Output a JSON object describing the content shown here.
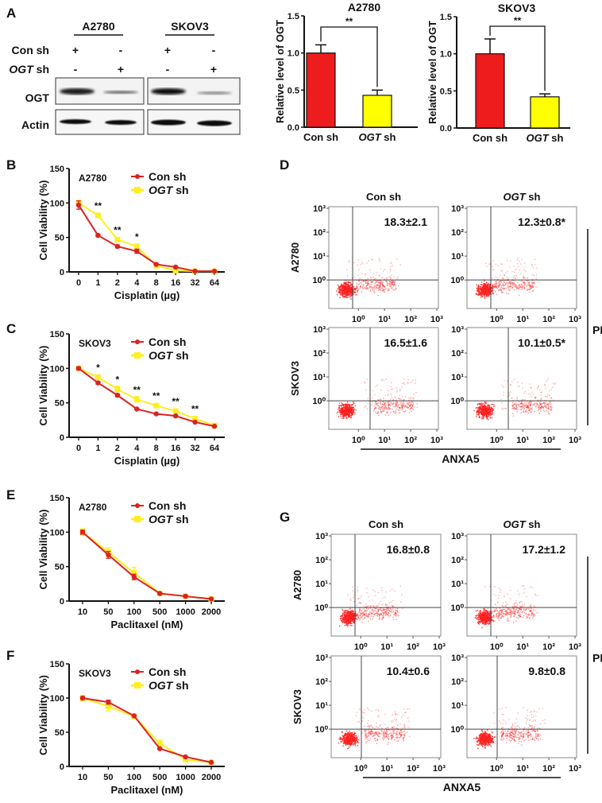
{
  "panels": {
    "A": "A",
    "B": "B",
    "C": "C",
    "D": "D",
    "E": "E",
    "F": "F",
    "G": "G"
  },
  "western_blot": {
    "cell_lines": [
      "A2780",
      "SKOV3"
    ],
    "row_labels": {
      "con": "Con sh",
      "ogt_italic": "OGT",
      "ogt_rest": " sh"
    },
    "con_signs": [
      "+",
      "-",
      "+",
      "-"
    ],
    "ogt_signs": [
      "-",
      "+",
      "-",
      "+"
    ],
    "proteins": [
      "OGT",
      "Actin"
    ]
  },
  "colors": {
    "con": "#ee1c1c",
    "ogt": "#ffff00",
    "con_line": "#dd2222",
    "ogt_line": "#ffee22",
    "flow_dot": "#ff2020"
  },
  "legend": {
    "con": "Con sh",
    "ogt_italic": "OGT",
    "ogt_rest": " sh"
  },
  "chart_data": [
    {
      "id": "A-bar-A2780",
      "type": "bar",
      "title": "A2780",
      "ylabel": "Relative level of OGT",
      "categories": [
        "Con sh",
        "OGT sh"
      ],
      "values": [
        1.0,
        0.43
      ],
      "errors": [
        0.11,
        0.07
      ],
      "ylim": [
        0,
        1.5
      ],
      "yticks": [
        "0.0",
        "0.5",
        "1.0",
        "1.5"
      ],
      "significance": "**"
    },
    {
      "id": "A-bar-SKOV3",
      "type": "bar",
      "title": "SKOV3",
      "ylabel": "Relative level of OGT",
      "categories": [
        "Con sh",
        "OGT sh"
      ],
      "values": [
        1.0,
        0.42
      ],
      "errors": [
        0.2,
        0.04
      ],
      "ylim": [
        0,
        1.5
      ],
      "yticks": [
        "0.0",
        "0.5",
        "1.0",
        "1.5"
      ],
      "significance": "**"
    },
    {
      "id": "B-line",
      "type": "line",
      "title": "A2780",
      "xlabel": "Cisplatin (µg)",
      "ylabel": "Cell Viability (%)",
      "categories": [
        "0",
        "1",
        "2",
        "4",
        "8",
        "16",
        "32",
        "64"
      ],
      "series": [
        {
          "name": "Con sh",
          "values": [
            97,
            53,
            37,
            30,
            11,
            7,
            1,
            1
          ],
          "errors": [
            6,
            2,
            2,
            3,
            1,
            1,
            0,
            0
          ]
        },
        {
          "name": "OGT sh",
          "values": [
            100,
            82,
            47,
            37,
            9,
            2,
            1,
            1
          ],
          "errors": [
            4,
            2,
            2,
            2,
            2,
            1,
            0,
            0
          ]
        }
      ],
      "significance": [
        "",
        "**",
        "**",
        "*",
        "",
        "",
        "",
        ""
      ],
      "ylim": [
        0,
        150
      ],
      "yticks": [
        "0",
        "50",
        "100",
        "150"
      ],
      "legend": "top-right"
    },
    {
      "id": "C-line",
      "type": "line",
      "title": "SKOV3",
      "xlabel": "Cisplatin (µg)",
      "ylabel": "Cell Viability (%)",
      "categories": [
        "0",
        "1",
        "2",
        "4",
        "8",
        "16",
        "32",
        "64"
      ],
      "series": [
        {
          "name": "Con sh",
          "values": [
            100,
            79,
            61,
            41,
            34,
            31,
            22,
            16
          ],
          "errors": [
            2,
            2,
            2,
            1,
            1,
            1,
            1,
            1
          ]
        },
        {
          "name": "OGT sh",
          "values": [
            100,
            87,
            70,
            55,
            46,
            38,
            27,
            17
          ],
          "errors": [
            2,
            3,
            4,
            4,
            2,
            2,
            2,
            1
          ]
        }
      ],
      "significance": [
        "",
        "*",
        "*",
        "**",
        "**",
        "**",
        "**",
        ""
      ],
      "ylim": [
        0,
        150
      ],
      "yticks": [
        "0",
        "50",
        "100",
        "150"
      ],
      "legend": "top-right"
    },
    {
      "id": "E-line",
      "type": "line",
      "title": "A2780",
      "xlabel": "Paclitaxel (nM)",
      "ylabel": "Cell Viability (%)",
      "categories": [
        "10",
        "50",
        "100",
        "500",
        "1000",
        "2000"
      ],
      "series": [
        {
          "name": "Con sh",
          "values": [
            100,
            67,
            35,
            11,
            7,
            3
          ],
          "errors": [
            3,
            5,
            4,
            1,
            1,
            1
          ]
        },
        {
          "name": "OGT sh",
          "values": [
            100,
            71,
            41,
            11,
            7,
            3
          ],
          "errors": [
            5,
            6,
            8,
            1,
            1,
            1
          ]
        }
      ],
      "significance": [
        "",
        "",
        "",
        "",
        "",
        ""
      ],
      "ylim": [
        0,
        150
      ],
      "yticks": [
        "0",
        "50",
        "100",
        "150"
      ],
      "legend": "top-right"
    },
    {
      "id": "F-line",
      "type": "line",
      "title": "SKOV3",
      "xlabel": "Paclitaxel (nM)",
      "ylabel": "Cell Viability (%)",
      "categories": [
        "10",
        "50",
        "100",
        "500",
        "1000",
        "2000"
      ],
      "series": [
        {
          "name": "Con sh",
          "values": [
            100,
            94,
            74,
            26,
            14,
            6
          ],
          "errors": [
            2,
            3,
            1,
            1,
            1,
            1
          ]
        },
        {
          "name": "OGT sh",
          "values": [
            100,
            88,
            73,
            34,
            10,
            6
          ],
          "errors": [
            4,
            7,
            2,
            4,
            3,
            1
          ]
        }
      ],
      "significance": [
        "",
        "",
        "",
        "",
        "",
        ""
      ],
      "ylim": [
        0,
        150
      ],
      "yticks": [
        "0",
        "50",
        "100",
        "150"
      ],
      "legend": "top-right"
    },
    {
      "id": "D-flow",
      "type": "scatter",
      "columns": [
        "Con sh",
        "OGT sh"
      ],
      "rows": [
        "A2780",
        "SKOV3"
      ],
      "values": [
        [
          "18.3±2.1",
          "12.3±0.8*"
        ],
        [
          "16.5±1.6",
          "10.1±0.5*"
        ]
      ],
      "xlabel": "ANXA5",
      "ylabel": "PI",
      "ticks": [
        "10⁰",
        "10¹",
        "10²",
        "10³"
      ]
    },
    {
      "id": "G-flow",
      "type": "scatter",
      "columns": [
        "Con sh",
        "OGT sh"
      ],
      "rows": [
        "A2780",
        "SKOV3"
      ],
      "values": [
        [
          "16.8±0.8",
          "17.2±1.2"
        ],
        [
          "10.4±0.6",
          "9.8±0.8"
        ]
      ],
      "xlabel": "ANXA5",
      "ylabel": "PI",
      "ticks": [
        "10⁰",
        "10¹",
        "10²",
        "10³"
      ]
    }
  ]
}
